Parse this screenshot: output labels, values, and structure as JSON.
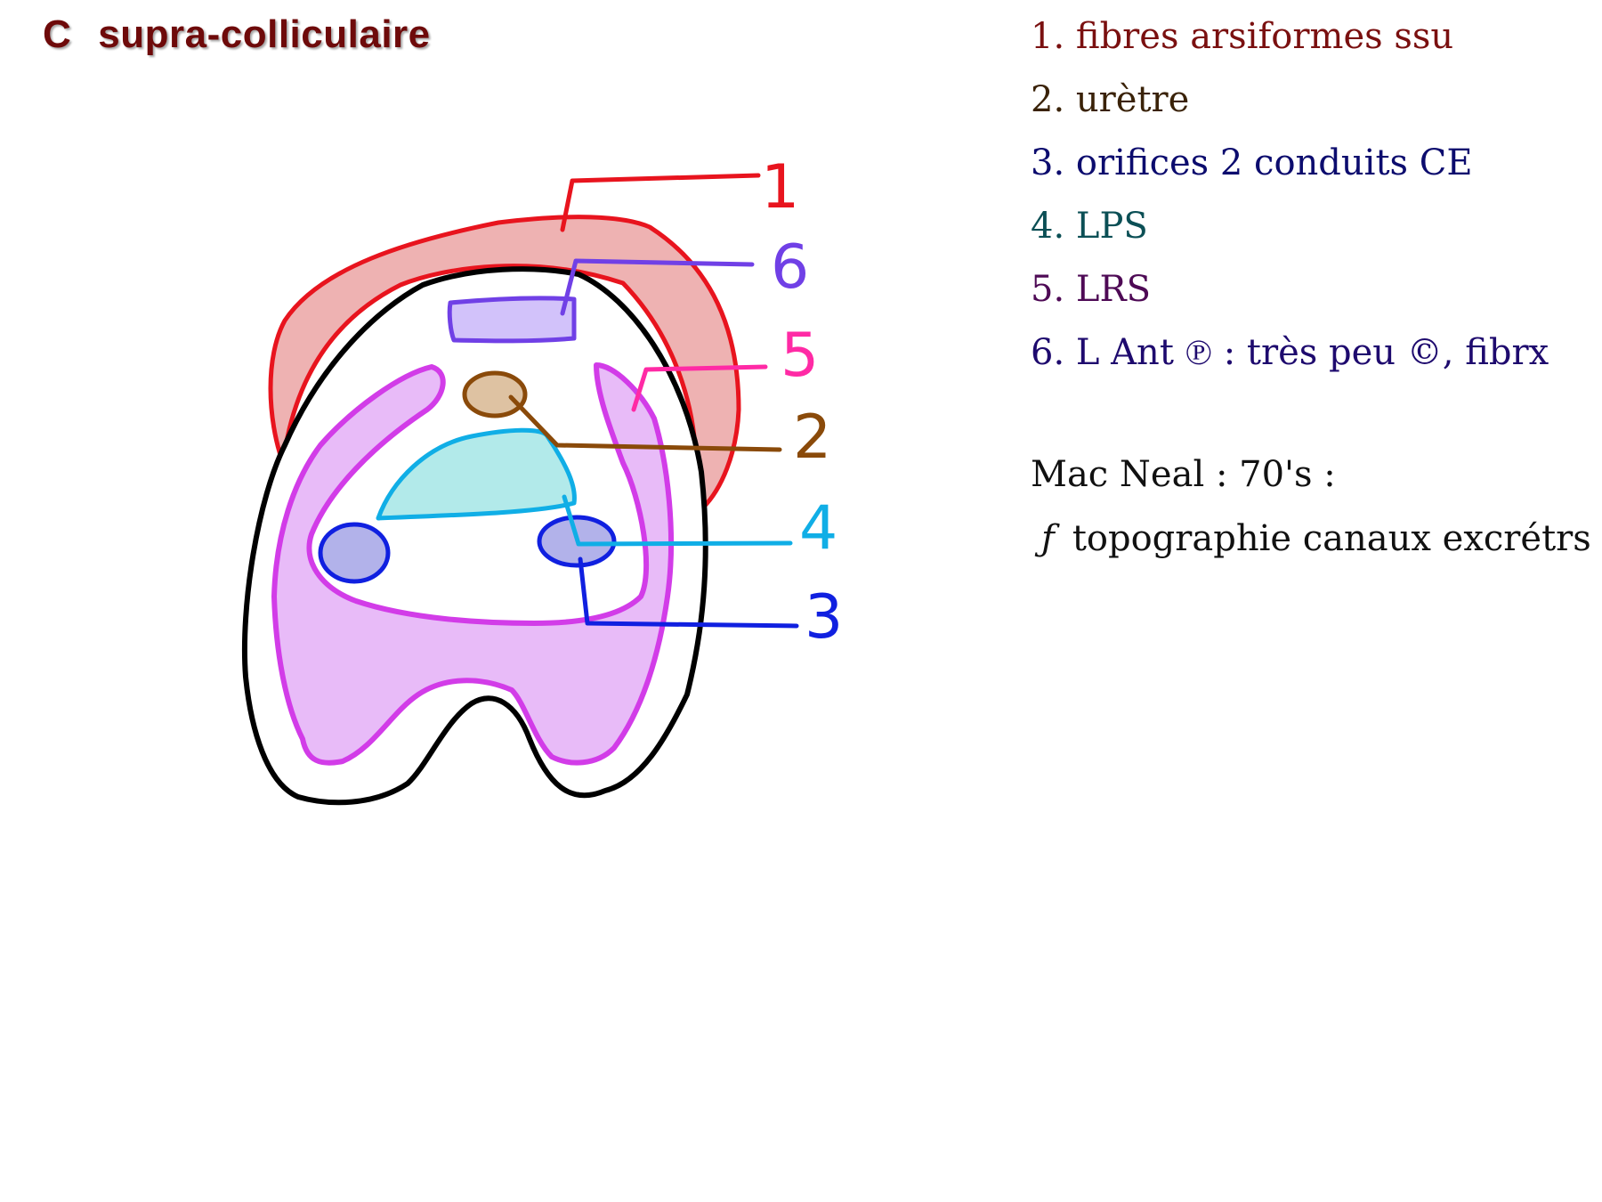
{
  "title": {
    "letter": "C",
    "text": "supra-colliculaire"
  },
  "legend": [
    {
      "num": "1.",
      "label": "fibres arsiformes ssu",
      "color": "#7a1010"
    },
    {
      "num": "2.",
      "label": "urètre",
      "color": "#3a2208"
    },
    {
      "num": "3.",
      "label": "orifices 2 conduits CE",
      "color": "#0c0c6e"
    },
    {
      "num": "4.",
      "label": "LPS",
      "color": "#0b4f55"
    },
    {
      "num": "5.",
      "label": "LRS",
      "color": "#4e0a55"
    },
    {
      "num": "6.",
      "label": "L Ant ℗ : très peu ©, fibrx",
      "color": "#1e0a6e"
    }
  ],
  "notes": {
    "line1": "Mac Neal : 70's :",
    "line2_symbol": "ƒ",
    "line2_text": "topographie canaux excrétrs"
  },
  "diagram": {
    "callouts": [
      {
        "number": "1",
        "color": "#e8141e"
      },
      {
        "number": "6",
        "color": "#7040e6"
      },
      {
        "number": "5",
        "color": "#ff2aa5"
      },
      {
        "number": "2",
        "color": "#8a4a0a"
      },
      {
        "number": "4",
        "color": "#10aee6"
      },
      {
        "number": "3",
        "color": "#1020e0"
      }
    ],
    "colors": {
      "fibres_fill": "#eeb2b2",
      "lrs_fill": "#e8bbf8",
      "lrs_stroke": "#d23ce8",
      "lps_fill": "#b2eaea",
      "orifice_fill": "#b2b2ea",
      "ant_fill": "#d2c2fa",
      "urethra_fill": "#dec2a2",
      "outline": "#000000"
    }
  }
}
